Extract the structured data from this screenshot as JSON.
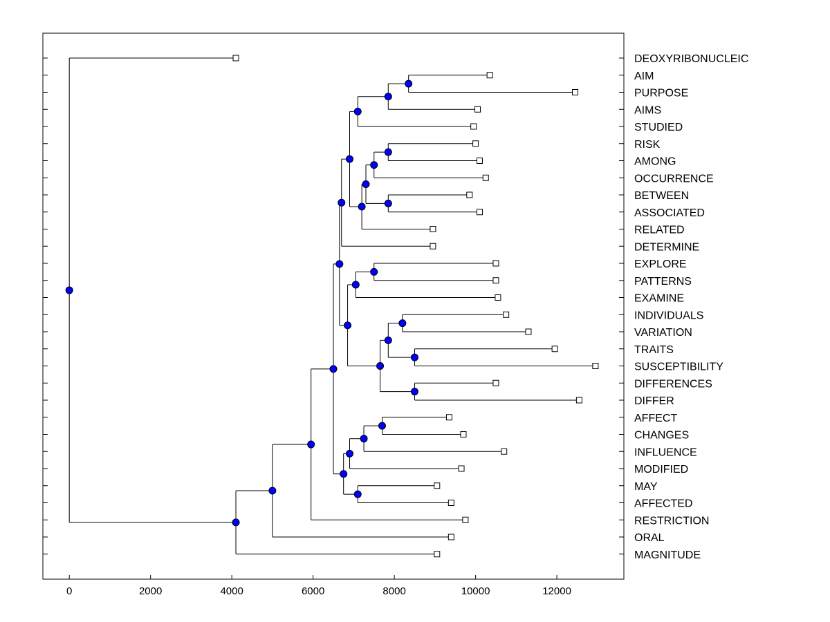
{
  "chart_data": {
    "type": "dendrogram",
    "title": "",
    "xlabel": "",
    "ylabel": "",
    "xlim": [
      -650,
      13650
    ],
    "x_ticks": [
      0,
      2000,
      4000,
      6000,
      8000,
      10000,
      12000
    ],
    "x_tick_labels": [
      "0",
      "2000",
      "4000",
      "6000",
      "8000",
      "10000",
      "12000"
    ],
    "leaves": [
      {
        "label": "DEOXYRIBONUCLEIC",
        "x": 4100
      },
      {
        "label": "AIM",
        "x": 10350
      },
      {
        "label": "PURPOSE",
        "x": 12450
      },
      {
        "label": "AIMS",
        "x": 10050
      },
      {
        "label": "STUDIED",
        "x": 9950
      },
      {
        "label": "RISK",
        "x": 10000
      },
      {
        "label": "AMONG",
        "x": 10100
      },
      {
        "label": "OCCURRENCE",
        "x": 10250
      },
      {
        "label": "BETWEEN",
        "x": 9850
      },
      {
        "label": "ASSOCIATED",
        "x": 10100
      },
      {
        "label": "RELATED",
        "x": 8950
      },
      {
        "label": "DETERMINE",
        "x": 8950
      },
      {
        "label": "EXPLORE",
        "x": 10500
      },
      {
        "label": "PATTERNS",
        "x": 10500
      },
      {
        "label": "EXAMINE",
        "x": 10550
      },
      {
        "label": "INDIVIDUALS",
        "x": 10750
      },
      {
        "label": "VARIATION",
        "x": 11300
      },
      {
        "label": "TRAITS",
        "x": 11950
      },
      {
        "label": "SUSCEPTIBILITY",
        "x": 12950
      },
      {
        "label": "DIFFERENCES",
        "x": 10500
      },
      {
        "label": "DIFFER",
        "x": 12550
      },
      {
        "label": "AFFECT",
        "x": 9350
      },
      {
        "label": "CHANGES",
        "x": 9700
      },
      {
        "label": "INFLUENCE",
        "x": 10700
      },
      {
        "label": "MODIFIED",
        "x": 9650
      },
      {
        "label": "MAY",
        "x": 9050
      },
      {
        "label": "AFFECTED",
        "x": 9400
      },
      {
        "label": "RESTRICTION",
        "x": 9750
      },
      {
        "label": "ORAL",
        "x": 9400
      },
      {
        "label": "MAGNITUDE",
        "x": 9050
      }
    ],
    "merges": [
      {
        "id": "n_aim_purpose",
        "x": 8350,
        "children": [
          "AIM",
          "PURPOSE"
        ]
      },
      {
        "id": "n_aims",
        "x": 7850,
        "children": [
          "n_aim_purpose",
          "AIMS"
        ]
      },
      {
        "id": "n_studied",
        "x": 7100,
        "children": [
          "n_aims",
          "STUDIED"
        ]
      },
      {
        "id": "n_risk_among",
        "x": 7850,
        "children": [
          "RISK",
          "AMONG"
        ]
      },
      {
        "id": "n_occurrence",
        "x": 7500,
        "children": [
          "n_risk_among",
          "OCCURRENCE"
        ]
      },
      {
        "id": "n_between_assoc",
        "x": 7850,
        "children": [
          "BETWEEN",
          "ASSOCIATED"
        ]
      },
      {
        "id": "n_occ_between",
        "x": 7300,
        "children": [
          "n_occurrence",
          "n_between_assoc"
        ]
      },
      {
        "id": "n_related",
        "x": 7200,
        "children": [
          "n_occ_between",
          "RELATED"
        ]
      },
      {
        "id": "n_group_a",
        "x": 6900,
        "children": [
          "n_studied",
          "n_related"
        ]
      },
      {
        "id": "n_determine",
        "x": 6700,
        "children": [
          "n_group_a",
          "DETERMINE"
        ]
      },
      {
        "id": "n_explore_patterns",
        "x": 7500,
        "children": [
          "EXPLORE",
          "PATTERNS"
        ]
      },
      {
        "id": "n_examine",
        "x": 7050,
        "children": [
          "n_explore_patterns",
          "EXAMINE"
        ]
      },
      {
        "id": "n_indiv_var",
        "x": 8200,
        "children": [
          "INDIVIDUALS",
          "VARIATION"
        ]
      },
      {
        "id": "n_traits_susc",
        "x": 8500,
        "children": [
          "TRAITS",
          "SUSCEPTIBILITY"
        ]
      },
      {
        "id": "n_var_traits",
        "x": 7850,
        "children": [
          "n_indiv_var",
          "n_traits_susc"
        ]
      },
      {
        "id": "n_diff",
        "x": 8500,
        "children": [
          "DIFFERENCES",
          "DIFFER"
        ]
      },
      {
        "id": "n_var_diff",
        "x": 7650,
        "children": [
          "n_var_traits",
          "n_diff"
        ]
      },
      {
        "id": "n_group_b",
        "x": 6850,
        "children": [
          "n_examine",
          "n_var_diff"
        ]
      },
      {
        "id": "n_group_ab",
        "x": 6650,
        "children": [
          "n_determine",
          "n_group_b"
        ]
      },
      {
        "id": "n_affect_changes",
        "x": 7700,
        "children": [
          "AFFECT",
          "CHANGES"
        ]
      },
      {
        "id": "n_influence",
        "x": 7250,
        "children": [
          "n_affect_changes",
          "INFLUENCE"
        ]
      },
      {
        "id": "n_modified",
        "x": 6900,
        "children": [
          "n_influence",
          "MODIFIED"
        ]
      },
      {
        "id": "n_may_affected",
        "x": 7100,
        "children": [
          "MAY",
          "AFFECTED"
        ]
      },
      {
        "id": "n_group_c",
        "x": 6750,
        "children": [
          "n_modified",
          "n_may_affected"
        ]
      },
      {
        "id": "n_group_abc",
        "x": 6500,
        "children": [
          "n_group_ab",
          "n_group_c"
        ]
      },
      {
        "id": "n_restriction",
        "x": 5950,
        "children": [
          "n_group_abc",
          "RESTRICTION"
        ]
      },
      {
        "id": "n_oral",
        "x": 5000,
        "children": [
          "n_restriction",
          "ORAL"
        ]
      },
      {
        "id": "n_magnitude",
        "x": 4100,
        "children": [
          "n_oral",
          "MAGNITUDE"
        ]
      },
      {
        "id": "n_root",
        "x": 0,
        "children": [
          "DEOXYRIBONUCLEIC",
          "n_magnitude"
        ]
      }
    ],
    "colors": {
      "node": "#0000ff",
      "line": "#000000",
      "leaf_marker": "#ffffff"
    }
  }
}
